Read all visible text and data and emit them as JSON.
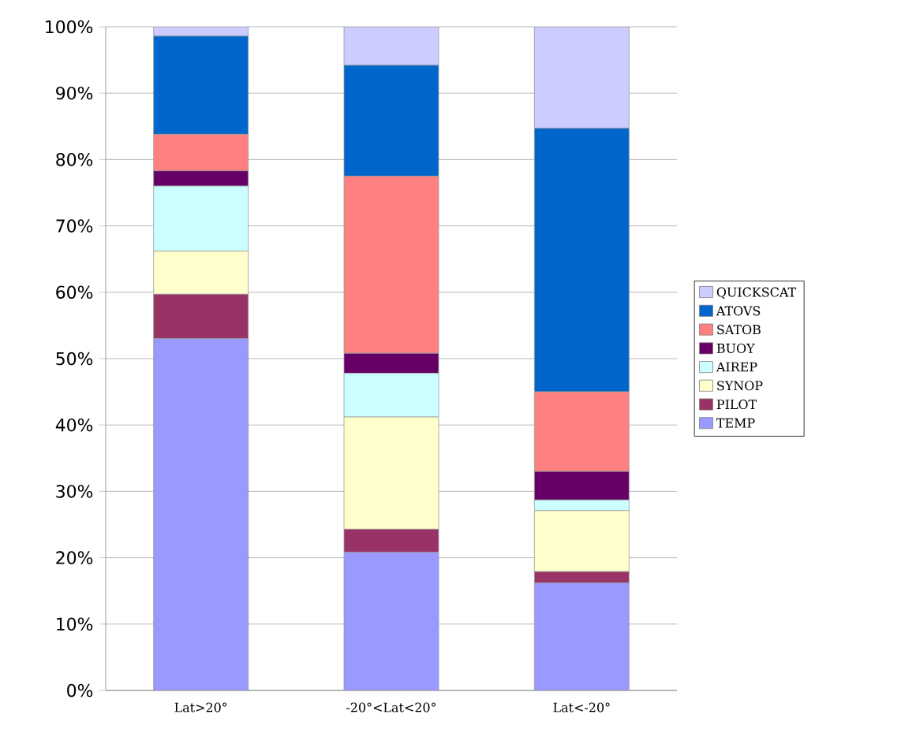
{
  "chart_data": {
    "type": "bar",
    "stacked": true,
    "categories": [
      "Lat>20°",
      "-20°<Lat<20°",
      "Lat<-20°"
    ],
    "series": [
      {
        "name": "TEMP",
        "color": "#9999ff",
        "values": [
          53,
          20.8,
          16.2
        ]
      },
      {
        "name": "PILOT",
        "color": "#993366",
        "values": [
          6.7,
          3.5,
          1.7
        ]
      },
      {
        "name": "SYNOP",
        "color": "#ffffcc",
        "values": [
          6.5,
          16.9,
          9.2
        ]
      },
      {
        "name": "AIREP",
        "color": "#ccffff",
        "values": [
          9.8,
          6.6,
          1.6
        ]
      },
      {
        "name": "BUOY",
        "color": "#660066",
        "values": [
          2.3,
          3.0,
          4.3
        ]
      },
      {
        "name": "SATOB",
        "color": "#ff8080",
        "values": [
          5.5,
          26.7,
          12.0
        ]
      },
      {
        "name": "ATOVS",
        "color": "#0066cc",
        "values": [
          14.8,
          16.7,
          39.7
        ]
      },
      {
        "name": "QUICKSCAT",
        "color": "#ccccff",
        "values": [
          1.4,
          5.8,
          15.3
        ]
      }
    ],
    "ylim": [
      0,
      100
    ],
    "yticks": [
      {
        "value": 0,
        "label": "0%"
      },
      {
        "value": 10,
        "label": "10%"
      },
      {
        "value": 20,
        "label": "20%"
      },
      {
        "value": 30,
        "label": "30%"
      },
      {
        "value": 40,
        "label": "40%"
      },
      {
        "value": 50,
        "label": "50%"
      },
      {
        "value": 60,
        "label": "60%"
      },
      {
        "value": 70,
        "label": "70%"
      },
      {
        "value": 80,
        "label": "80%"
      },
      {
        "value": 90,
        "label": "90%"
      },
      {
        "value": 100,
        "label": "100%"
      }
    ],
    "grid": "y",
    "legend": "right"
  }
}
